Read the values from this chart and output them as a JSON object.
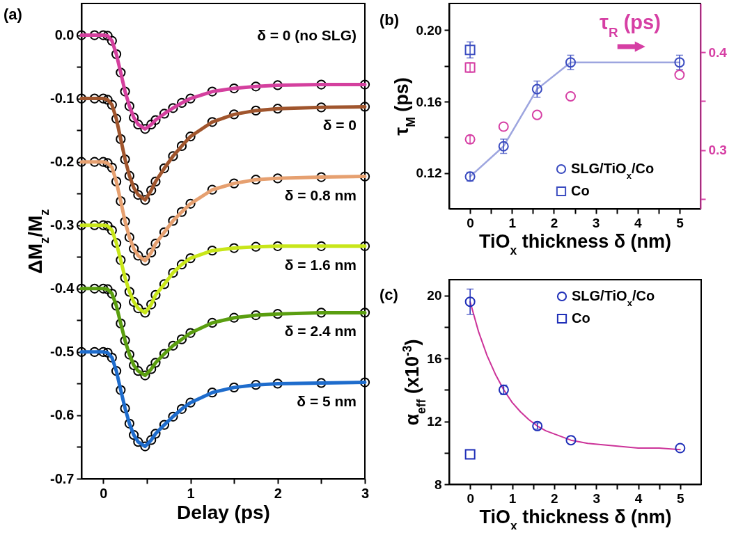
{
  "chart_data": [
    {
      "type": "line",
      "title": "(a)",
      "xlabel": "Delay (ps)",
      "ylabel": "ΔM$_{z}$/M$_{z}$",
      "xlim": [
        -0.25,
        3
      ],
      "ylim": [
        -0.7,
        0.05
      ],
      "xticks": [
        0,
        1,
        2,
        3,
        {
          "value": 0.5,
          "label": null
        },
        {
          "value": 1.5,
          "label": null
        },
        {
          "value": 2.5,
          "label": null
        }
      ],
      "yticks": [
        {
          "value": 0,
          "label": "0.0"
        },
        -0.1,
        -0.2,
        -0.3,
        -0.4,
        -0.5,
        -0.6,
        -0.7,
        {
          "value": -0.05,
          "label": null
        },
        {
          "value": -0.15,
          "label": null
        },
        {
          "value": -0.25,
          "label": null
        },
        {
          "value": -0.35,
          "label": null
        },
        {
          "value": -0.45,
          "label": null
        },
        {
          "value": -0.55,
          "label": null
        },
        {
          "value": -0.65,
          "label": null
        }
      ],
      "legend": false,
      "x": [
        -0.25,
        -0.1,
        0,
        0.05,
        0.1,
        0.15,
        0.2,
        0.25,
        0.3,
        0.35,
        0.4,
        0.48,
        0.55,
        0.6,
        0.7,
        0.8,
        0.9,
        1.0,
        1.25,
        1.5,
        1.75,
        2,
        2.5,
        3
      ],
      "series": [
        {
          "type": "scatter",
          "marker": "circle",
          "color": "#000000",
          "values": [
            0,
            0,
            0,
            -0.001,
            -0.009,
            -0.03,
            -0.059,
            -0.089,
            -0.112,
            -0.13,
            -0.141,
            -0.148,
            -0.141,
            -0.134,
            -0.124,
            -0.115,
            -0.107,
            -0.1,
            -0.089,
            -0.084,
            -0.081,
            -0.079,
            -0.078,
            -0.078
          ]
        },
        {
          "type": "scatter",
          "marker": "circle",
          "color": "#000000",
          "values": [
            -0.1,
            -0.1,
            -0.1,
            -0.102,
            -0.11,
            -0.132,
            -0.164,
            -0.196,
            -0.222,
            -0.241,
            -0.252,
            -0.26,
            -0.245,
            -0.231,
            -0.21,
            -0.191,
            -0.175,
            -0.16,
            -0.137,
            -0.125,
            -0.119,
            -0.116,
            -0.114,
            -0.113
          ]
        },
        {
          "type": "scatter",
          "marker": "circle",
          "color": "#000000",
          "values": [
            -0.2,
            -0.2,
            -0.2,
            -0.202,
            -0.209,
            -0.231,
            -0.262,
            -0.294,
            -0.319,
            -0.337,
            -0.348,
            -0.356,
            -0.343,
            -0.329,
            -0.311,
            -0.293,
            -0.279,
            -0.266,
            -0.244,
            -0.234,
            -0.228,
            -0.226,
            -0.224,
            -0.223
          ]
        },
        {
          "type": "scatter",
          "marker": "circle",
          "color": "#000000",
          "values": [
            -0.3,
            -0.3,
            -0.3,
            -0.301,
            -0.308,
            -0.328,
            -0.355,
            -0.383,
            -0.405,
            -0.421,
            -0.431,
            -0.438,
            -0.425,
            -0.41,
            -0.393,
            -0.375,
            -0.362,
            -0.352,
            -0.34,
            -0.336,
            -0.334,
            -0.333,
            -0.333,
            -0.333
          ]
        },
        {
          "type": "scatter",
          "marker": "circle",
          "color": "#000000",
          "values": [
            -0.4,
            -0.4,
            -0.4,
            -0.401,
            -0.408,
            -0.427,
            -0.455,
            -0.482,
            -0.504,
            -0.521,
            -0.53,
            -0.537,
            -0.527,
            -0.517,
            -0.503,
            -0.49,
            -0.48,
            -0.47,
            -0.454,
            -0.446,
            -0.442,
            -0.44,
            -0.438,
            -0.438
          ]
        },
        {
          "type": "scatter",
          "marker": "circle",
          "color": "#000000",
          "values": [
            -0.5,
            -0.5,
            -0.5,
            -0.501,
            -0.509,
            -0.53,
            -0.56,
            -0.589,
            -0.613,
            -0.631,
            -0.642,
            -0.649,
            -0.639,
            -0.629,
            -0.615,
            -0.602,
            -0.59,
            -0.58,
            -0.564,
            -0.556,
            -0.552,
            -0.55,
            -0.549,
            -0.548
          ]
        },
        {
          "name": "δ = 0 (no SLG)",
          "color": "#d4409e",
          "values": [
            0,
            0,
            0,
            -0.001,
            -0.009,
            -0.03,
            -0.059,
            -0.089,
            -0.112,
            -0.13,
            -0.141,
            -0.148,
            -0.141,
            -0.134,
            -0.124,
            -0.115,
            -0.107,
            -0.1,
            -0.089,
            -0.084,
            -0.081,
            -0.079,
            -0.078,
            -0.078
          ]
        },
        {
          "name": "δ = 0",
          "color": "#a0552d",
          "values": [
            -0.1,
            -0.1,
            -0.1,
            -0.102,
            -0.11,
            -0.132,
            -0.164,
            -0.196,
            -0.222,
            -0.241,
            -0.252,
            -0.26,
            -0.245,
            -0.231,
            -0.21,
            -0.191,
            -0.175,
            -0.16,
            -0.137,
            -0.125,
            -0.119,
            -0.116,
            -0.114,
            -0.113
          ]
        },
        {
          "name": "δ = 0.8 nm",
          "color": "#e6a070",
          "values": [
            -0.2,
            -0.2,
            -0.2,
            -0.202,
            -0.209,
            -0.231,
            -0.262,
            -0.294,
            -0.319,
            -0.337,
            -0.348,
            -0.356,
            -0.343,
            -0.329,
            -0.311,
            -0.293,
            -0.279,
            -0.266,
            -0.244,
            -0.234,
            -0.228,
            -0.226,
            -0.224,
            -0.223
          ]
        },
        {
          "name": "δ = 1.6 nm",
          "color": "#c8e619",
          "values": [
            -0.3,
            -0.3,
            -0.3,
            -0.301,
            -0.308,
            -0.328,
            -0.355,
            -0.383,
            -0.405,
            -0.421,
            -0.431,
            -0.438,
            -0.425,
            -0.41,
            -0.393,
            -0.375,
            -0.362,
            -0.352,
            -0.34,
            -0.336,
            -0.334,
            -0.333,
            -0.333,
            -0.333
          ]
        },
        {
          "name": "δ = 2.4 nm",
          "color": "#5a9e10",
          "values": [
            -0.4,
            -0.4,
            -0.4,
            -0.401,
            -0.408,
            -0.427,
            -0.455,
            -0.482,
            -0.504,
            -0.521,
            -0.53,
            -0.537,
            -0.527,
            -0.517,
            -0.503,
            -0.49,
            -0.48,
            -0.47,
            -0.454,
            -0.446,
            -0.442,
            -0.44,
            -0.438,
            -0.438
          ]
        },
        {
          "name": "δ = 5 nm",
          "color": "#1e6ccc",
          "values": [
            -0.5,
            -0.5,
            -0.5,
            -0.501,
            -0.509,
            -0.53,
            -0.56,
            -0.589,
            -0.613,
            -0.631,
            -0.642,
            -0.649,
            -0.639,
            -0.629,
            -0.615,
            -0.602,
            -0.59,
            -0.58,
            -0.564,
            -0.556,
            -0.552,
            -0.55,
            -0.549,
            -0.548
          ]
        }
      ]
    },
    {
      "type": "scatter",
      "title": "(b)",
      "xlabel": "TiO$_{x}$ thickness δ (nm)",
      "ylabel": "τ$_{M}$ (ps)",
      "y2label": "τ$_{R}$ (ps)",
      "xlim": [
        -0.5,
        5.5
      ],
      "xticks": [
        0,
        1,
        2,
        3,
        4,
        5,
        {
          "value": 0.5,
          "label": null
        },
        {
          "value": 1.5,
          "label": null
        },
        {
          "value": 2.5,
          "label": null
        },
        {
          "value": 3.5,
          "label": null
        },
        {
          "value": 4.5,
          "label": null
        }
      ],
      "ylim": [
        0.1,
        0.215
      ],
      "yticks": [
        0.12,
        0.16,
        {
          "value": 0.2,
          "label": "0.20"
        },
        {
          "value": 0.14,
          "label": null
        },
        {
          "value": 0.18,
          "label": null
        }
      ],
      "y2lim": [
        0.24,
        0.45
      ],
      "y2ticks": [
        0.3,
        0.4,
        {
          "value": 0.25,
          "label": null
        },
        {
          "value": 0.35,
          "label": null
        }
      ],
      "legend": "bottom right",
      "series": [
        {
          "name": "SLG/TiO$_{x}$/Co",
          "type": "line",
          "marker": "circle",
          "color": "#3b4cc0",
          "x": [
            0,
            0.8,
            1.6,
            2.4,
            5
          ],
          "values": [
            0.118,
            0.135,
            0.167,
            0.182,
            0.182
          ],
          "errors": [
            0.0025,
            0.004,
            0.0045,
            0.004,
            0.004
          ]
        },
        {
          "name": "Co",
          "marker": "square",
          "color": "#3b4cc0",
          "x": [
            0
          ],
          "values": [
            0.189
          ],
          "errors": [
            0.0045
          ]
        },
        {
          "marker": "circle",
          "color": "#d63fa4",
          "axis": "y2",
          "x": [
            0,
            0.8,
            1.6,
            2.4,
            5
          ],
          "values": [
            0.311,
            0.324,
            0.336,
            0.355,
            0.377
          ],
          "errors": [
            0.004,
            null,
            null,
            null,
            null
          ]
        },
        {
          "marker": "square",
          "color": "#d63fa4",
          "axis": "y2",
          "x": [
            0
          ],
          "values": [
            0.3845
          ],
          "errors": [
            0.005
          ]
        }
      ]
    },
    {
      "type": "scatter",
      "title": "(c)",
      "xlabel": "TiO$_{x}$ thickness δ (nm)",
      "ylabel": "α$_{eff}$ (x10$^{-3}$)",
      "xlim": [
        -0.5,
        5.5
      ],
      "xticks": [
        0,
        1,
        2,
        3,
        4,
        5,
        {
          "value": 0.5,
          "label": null
        },
        {
          "value": 1.5,
          "label": null
        },
        {
          "value": 2.5,
          "label": null
        },
        {
          "value": 3.5,
          "label": null
        },
        {
          "value": 4.5,
          "label": null
        }
      ],
      "ylim": [
        8,
        21
      ],
      "yticks": [
        8,
        12,
        16,
        20,
        {
          "value": 10,
          "label": null
        },
        {
          "value": 14,
          "label": null
        },
        {
          "value": 18,
          "label": null
        }
      ],
      "legend": "top right",
      "series": [
        {
          "type": "line",
          "marker": "none",
          "color": "#cc3399",
          "x": [
            0,
            0.2,
            0.4,
            0.6,
            0.8,
            1.0,
            1.2,
            1.4,
            1.6,
            1.8,
            2.0,
            2.4,
            2.8,
            3.2,
            3.6,
            4.0,
            4.5,
            5
          ],
          "values": [
            19.6,
            17.7,
            16.2,
            15.0,
            14.0,
            13.2,
            12.6,
            12.1,
            11.7,
            11.4,
            11.2,
            10.8,
            10.6,
            10.5,
            10.4,
            10.3,
            10.3,
            10.2
          ]
        },
        {
          "name": "SLG/TiO$_{x}$/Co",
          "marker": "circle",
          "color": "#1f2fb8",
          "x": [
            0,
            0.8,
            1.6,
            2.4,
            5
          ],
          "values": [
            19.6,
            14.0,
            11.7,
            10.8,
            10.3
          ],
          "errors": [
            0.8,
            0.3,
            0.2,
            null,
            null
          ]
        },
        {
          "name": "Co",
          "marker": "square",
          "color": "#1f2fb8",
          "x": [
            0
          ],
          "values": [
            9.9
          ]
        }
      ]
    }
  ]
}
